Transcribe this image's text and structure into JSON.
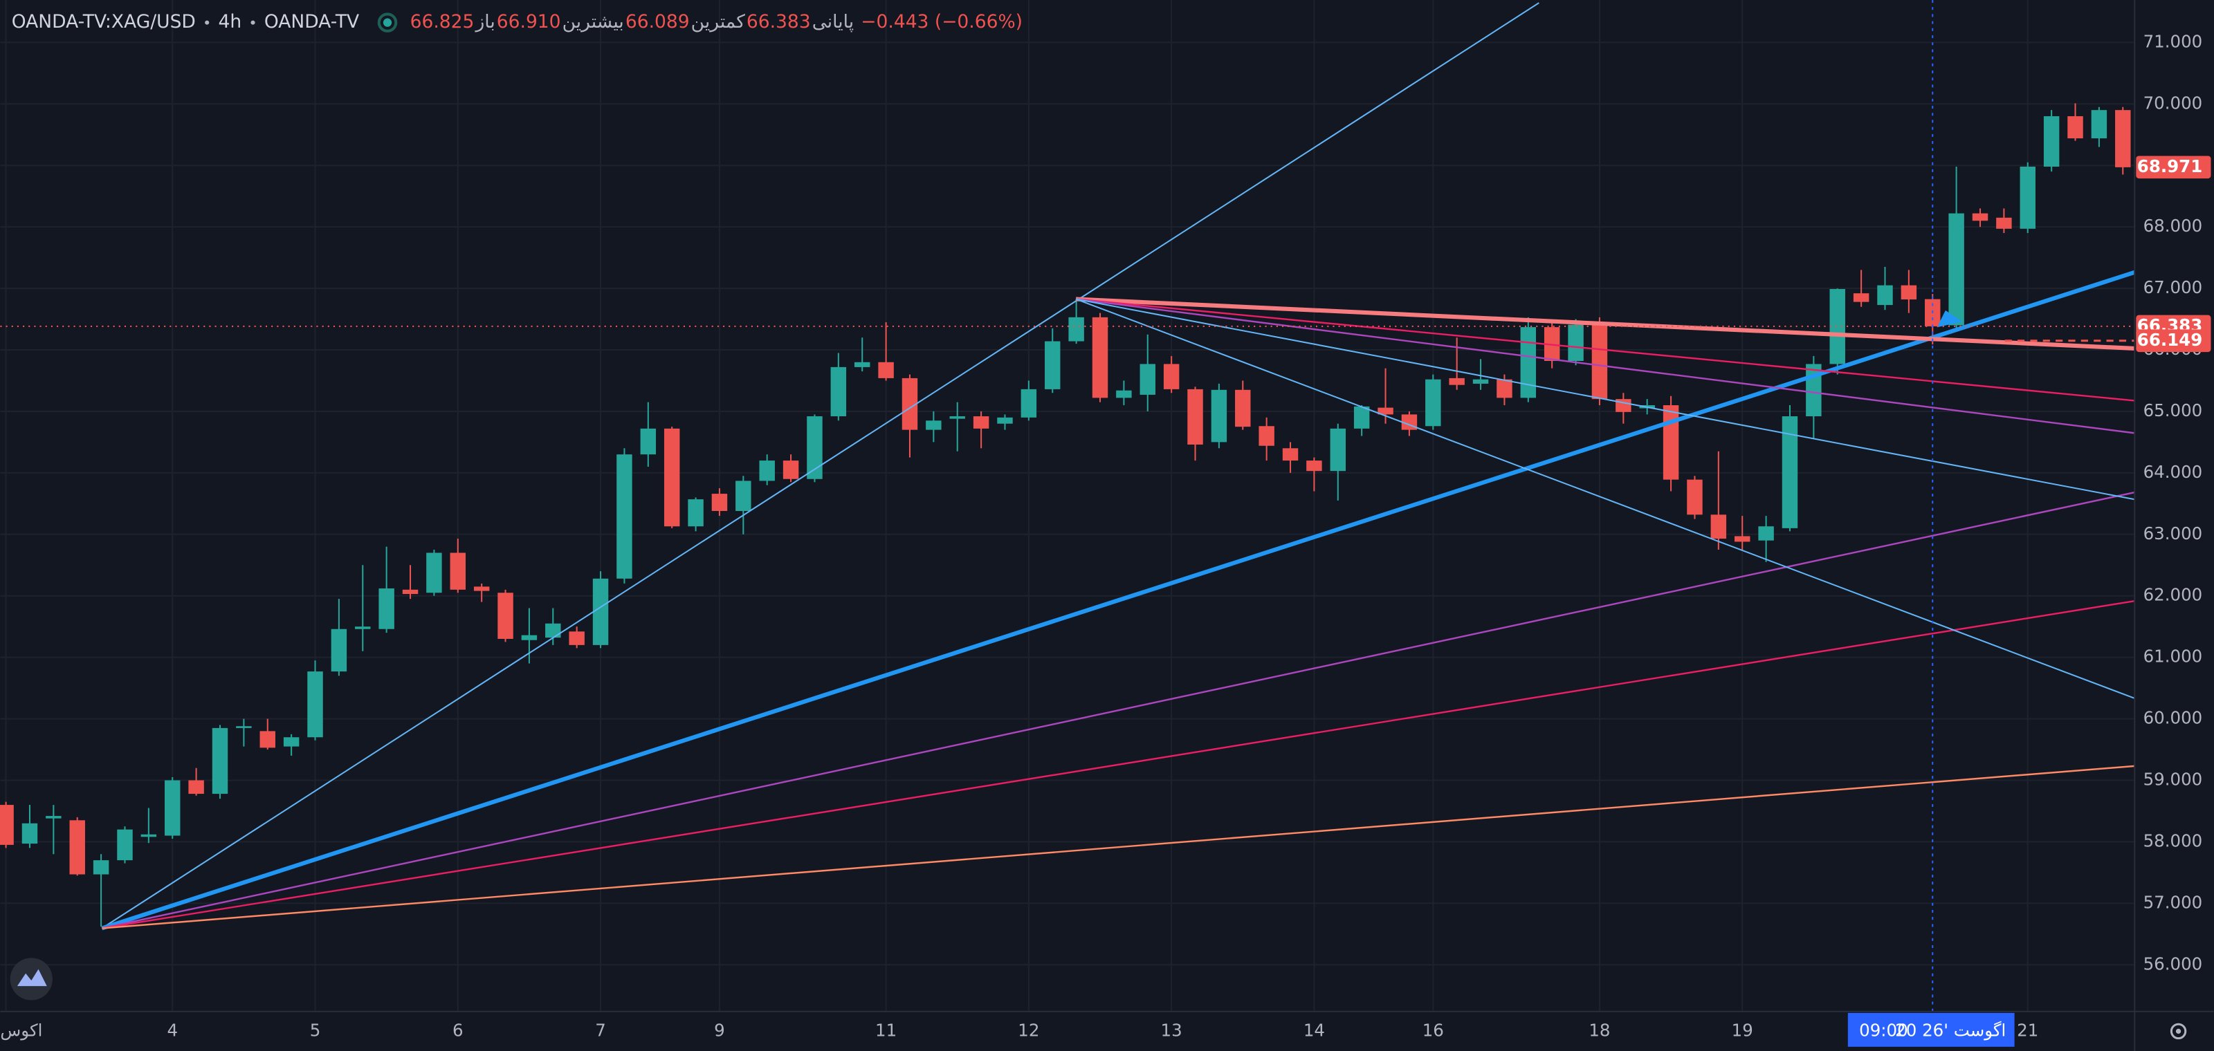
{
  "header": {
    "symbol": "OANDA-TV:XAG/USD",
    "interval": "4h",
    "source": "OANDA-TV",
    "ohlc": [
      {
        "label": "باز",
        "value": "66.825"
      },
      {
        "label": "بیشترین",
        "value": "66.910"
      },
      {
        "label": "کمترین",
        "value": "66.089"
      },
      {
        "label": "پایانی",
        "value": "66.383"
      }
    ],
    "change": "−0.443 (−0.66%)"
  },
  "crosshair": {
    "time": "09:00",
    "date": "20 اگوست '26"
  },
  "chart_data": {
    "type": "candlestick",
    "categories": [
      "اکوس",
      null,
      null,
      null,
      null,
      null,
      null,
      "4",
      null,
      null,
      null,
      null,
      null,
      "5",
      null,
      null,
      null,
      null,
      null,
      "6",
      null,
      null,
      null,
      null,
      null,
      "7",
      null,
      null,
      null,
      null,
      "9",
      null,
      null,
      null,
      null,
      null,
      null,
      "11",
      null,
      null,
      null,
      null,
      null,
      "12",
      null,
      null,
      null,
      null,
      null,
      "13",
      null,
      null,
      null,
      null,
      null,
      "14",
      null,
      null,
      null,
      null,
      "16",
      null,
      null,
      null,
      null,
      null,
      null,
      "18",
      null,
      null,
      null,
      null,
      null,
      "19",
      null,
      null,
      null,
      null,
      null,
      null,
      null,
      null,
      null,
      null,
      null,
      "21",
      null,
      null,
      null,
      null
    ],
    "open": [
      58.6,
      57.97,
      58.38,
      58.35,
      57.47,
      57.7,
      58.08,
      58.1,
      59.0,
      58.78,
      59.85,
      59.8,
      59.55,
      59.7,
      60.77,
      61.46,
      61.46,
      62.1,
      62.05,
      62.7,
      62.15,
      62.05,
      61.28,
      61.32,
      61.42,
      61.2,
      62.28,
      64.3,
      64.72,
      63.13,
      63.66,
      63.38,
      63.87,
      64.2,
      63.9,
      64.92,
      65.72,
      65.8,
      65.54,
      64.7,
      64.88,
      64.92,
      64.8,
      64.9,
      65.36,
      66.14,
      66.53,
      65.22,
      65.27,
      65.77,
      65.36,
      64.5,
      65.35,
      64.76,
      64.4,
      64.2,
      64.03,
      64.72,
      65.06,
      64.95,
      64.76,
      65.54,
      65.45,
      65.52,
      65.22,
      66.37,
      65.82,
      66.41,
      65.2,
      65.05,
      65.1,
      63.89,
      63.32,
      62.97,
      62.9,
      63.1,
      64.92,
      65.77,
      66.92,
      66.73,
      67.05,
      66.825,
      66.4,
      68.22,
      68.15,
      67.97,
      68.98,
      69.8,
      69.44,
      69.9
    ],
    "high": [
      58.65,
      58.6,
      58.6,
      58.4,
      57.8,
      58.25,
      58.55,
      59.05,
      59.2,
      59.9,
      60.0,
      60.0,
      59.75,
      60.95,
      61.95,
      62.5,
      62.8,
      62.5,
      62.75,
      62.93,
      62.2,
      62.1,
      61.8,
      61.8,
      61.5,
      62.4,
      64.4,
      65.15,
      64.75,
      63.6,
      63.75,
      63.95,
      64.3,
      64.3,
      64.95,
      65.95,
      66.2,
      66.45,
      65.6,
      65.0,
      65.15,
      65.0,
      64.95,
      65.5,
      66.35,
      66.83,
      66.6,
      65.5,
      66.25,
      65.9,
      65.4,
      65.45,
      65.5,
      64.9,
      64.5,
      64.25,
      64.8,
      65.1,
      65.7,
      65.0,
      65.6,
      66.2,
      65.85,
      65.6,
      66.53,
      66.45,
      66.5,
      66.53,
      65.3,
      65.2,
      65.25,
      63.95,
      64.35,
      63.3,
      63.3,
      65.1,
      65.9,
      67.0,
      67.3,
      67.35,
      67.3,
      66.91,
      68.98,
      68.3,
      68.3,
      69.05,
      69.9,
      70.01,
      69.95,
      69.95
    ],
    "low": [
      57.9,
      57.9,
      57.8,
      57.45,
      56.62,
      57.65,
      57.98,
      58.05,
      58.75,
      58.7,
      59.55,
      59.5,
      59.4,
      59.65,
      60.7,
      61.1,
      61.4,
      61.95,
      62.0,
      62.05,
      61.9,
      61.25,
      60.9,
      61.2,
      61.15,
      61.15,
      62.2,
      64.1,
      63.1,
      63.05,
      63.3,
      63.0,
      63.8,
      63.85,
      63.85,
      64.85,
      65.65,
      65.5,
      64.25,
      64.5,
      64.35,
      64.4,
      64.7,
      64.85,
      65.3,
      66.1,
      65.15,
      65.1,
      65.0,
      65.3,
      64.2,
      64.4,
      64.7,
      64.2,
      64.0,
      63.7,
      63.55,
      64.6,
      64.8,
      64.6,
      64.7,
      65.35,
      65.35,
      65.1,
      65.15,
      65.7,
      65.75,
      65.1,
      64.8,
      64.95,
      63.7,
      63.25,
      62.75,
      62.75,
      62.55,
      63.05,
      64.55,
      65.6,
      66.7,
      66.65,
      66.6,
      66.089,
      66.35,
      68.0,
      67.9,
      67.9,
      68.9,
      69.4,
      69.3,
      68.85
    ],
    "close": [
      57.95,
      58.3,
      58.42,
      57.47,
      57.7,
      58.2,
      58.12,
      59.0,
      58.78,
      59.85,
      59.88,
      59.53,
      59.7,
      60.77,
      61.46,
      61.5,
      62.12,
      62.03,
      62.7,
      62.1,
      62.08,
      61.3,
      61.36,
      61.55,
      61.2,
      62.28,
      64.3,
      64.72,
      63.13,
      63.57,
      63.38,
      63.87,
      64.2,
      63.9,
      64.92,
      65.72,
      65.8,
      65.54,
      64.7,
      64.85,
      64.92,
      64.72,
      64.9,
      65.36,
      66.14,
      66.53,
      65.22,
      65.34,
      65.77,
      65.36,
      64.46,
      65.35,
      64.75,
      64.44,
      64.2,
      64.03,
      64.72,
      65.08,
      64.95,
      64.7,
      65.52,
      65.43,
      65.52,
      65.22,
      66.37,
      65.82,
      66.41,
      65.2,
      64.99,
      65.1,
      63.89,
      63.32,
      62.93,
      62.88,
      63.13,
      64.92,
      65.77,
      66.99,
      66.78,
      67.05,
      66.82,
      66.383,
      68.22,
      68.1,
      67.97,
      68.98,
      69.8,
      69.44,
      69.9,
      68.97
    ],
    "up_color": "#26a69a",
    "down_color": "#ef5350",
    "ylim": [
      55.24,
      71.69
    ],
    "yticks": [
      {
        "value": 56,
        "label": "56.000"
      },
      {
        "value": 57,
        "label": "57.000"
      },
      {
        "value": 58,
        "label": "58.000"
      },
      {
        "value": 59,
        "label": "59.000"
      },
      {
        "value": 60,
        "label": "60.000"
      },
      {
        "value": 61,
        "label": "61.000"
      },
      {
        "value": 62,
        "label": "62.000"
      },
      {
        "value": 63,
        "label": "63.000"
      },
      {
        "value": 64,
        "label": "64.000"
      },
      {
        "value": 65,
        "label": "65.000"
      },
      {
        "value": 66,
        "label": "66.000"
      },
      {
        "value": 67,
        "label": "67.000"
      },
      {
        "value": 68,
        "label": "68.000"
      },
      {
        "value": 69,
        "label": "69.000"
      },
      {
        "value": 70,
        "label": "70.000"
      },
      {
        "value": 71,
        "label": "71.000"
      }
    ],
    "price_labels": [
      68.971,
      66.383,
      66.149
    ],
    "grid": true
  }
}
